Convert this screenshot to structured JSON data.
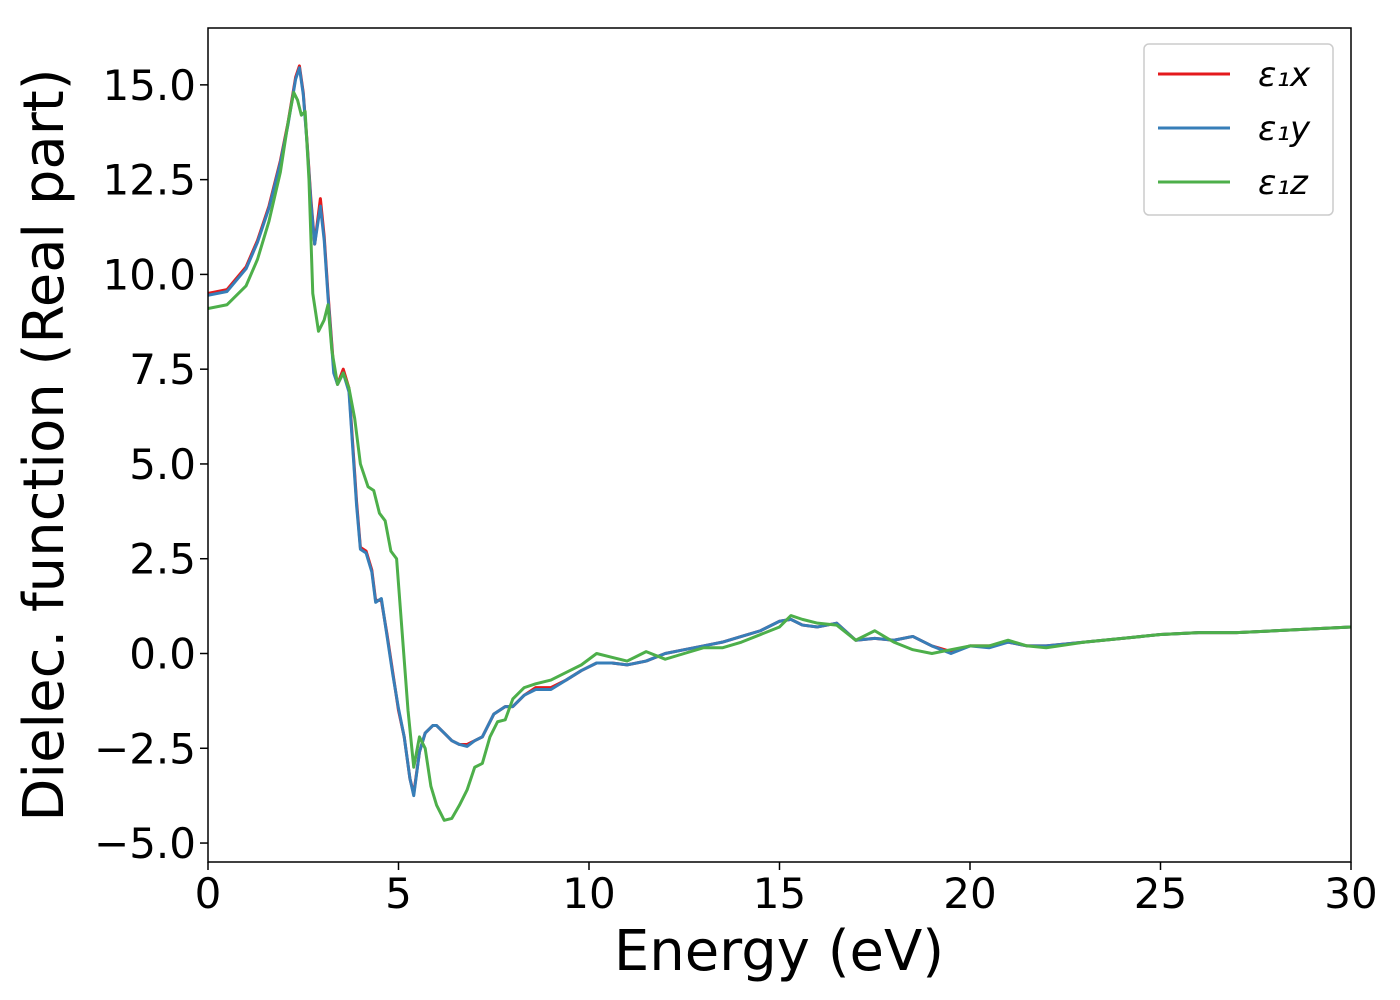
{
  "chart_data": {
    "type": "line",
    "title": "",
    "xlabel": "Energy (eV)",
    "ylabel": "Dielec. function (Real part)",
    "xlim": [
      0,
      30
    ],
    "ylim": [
      -5.5,
      16.5
    ],
    "xticks": [
      0,
      5,
      10,
      15,
      20,
      25,
      30
    ],
    "xtick_labels": [
      "0",
      "5",
      "10",
      "15",
      "20",
      "25",
      "30"
    ],
    "yticks": [
      -5.0,
      -2.5,
      0.0,
      2.5,
      5.0,
      7.5,
      10.0,
      12.5,
      15.0
    ],
    "ytick_labels": [
      "−5.0",
      "−2.5",
      "0.0",
      "2.5",
      "5.0",
      "7.5",
      "10.0",
      "12.5",
      "15.0"
    ],
    "grid": false,
    "legend_position": "top-right",
    "series": [
      {
        "name": "ε₁x",
        "color": "#e41a1c",
        "x": [
          0,
          0.5,
          1.0,
          1.3,
          1.6,
          1.9,
          2.1,
          2.3,
          2.4,
          2.5,
          2.6,
          2.7,
          2.8,
          2.95,
          3.05,
          3.15,
          3.3,
          3.4,
          3.55,
          3.7,
          3.8,
          3.9,
          4.0,
          4.15,
          4.3,
          4.4,
          4.55,
          4.7,
          4.85,
          5.0,
          5.15,
          5.3,
          5.4,
          5.55,
          5.7,
          5.9,
          6.0,
          6.2,
          6.4,
          6.6,
          6.8,
          7.0,
          7.2,
          7.5,
          7.8,
          8.0,
          8.3,
          8.6,
          9.0,
          9.4,
          9.8,
          10.2,
          10.6,
          11.0,
          11.5,
          12.0,
          12.5,
          13.0,
          13.5,
          14.0,
          14.5,
          15.0,
          15.3,
          15.6,
          16.0,
          16.5,
          17.0,
          17.5,
          18.0,
          18.5,
          19.0,
          19.5,
          20.0,
          20.5,
          21.0,
          21.5,
          22.0,
          23.0,
          24.0,
          25.0,
          26.0,
          27.0,
          28.0,
          29.0,
          30.0
        ],
        "y": [
          9.5,
          9.6,
          10.2,
          10.9,
          11.8,
          13.0,
          14.0,
          15.2,
          15.5,
          14.8,
          13.5,
          12.0,
          10.8,
          12.0,
          11.0,
          9.5,
          7.5,
          7.1,
          7.5,
          7.0,
          5.5,
          4.0,
          2.8,
          2.7,
          2.2,
          1.4,
          1.4,
          0.5,
          -0.5,
          -1.5,
          -2.2,
          -3.3,
          -3.7,
          -2.6,
          -2.1,
          -1.9,
          -1.9,
          -2.1,
          -2.3,
          -2.4,
          -2.4,
          -2.3,
          -2.2,
          -1.6,
          -1.4,
          -1.4,
          -1.1,
          -0.9,
          -0.9,
          -0.7,
          -0.45,
          -0.25,
          -0.25,
          -0.3,
          -0.2,
          0.0,
          0.1,
          0.2,
          0.3,
          0.45,
          0.6,
          0.85,
          0.9,
          0.75,
          0.7,
          0.8,
          0.35,
          0.4,
          0.35,
          0.45,
          0.2,
          0.05,
          0.2,
          0.2,
          0.3,
          0.2,
          0.2,
          0.3,
          0.4,
          0.5,
          0.55,
          0.55,
          0.6,
          0.65,
          0.7
        ]
      },
      {
        "name": "ε₁y",
        "color": "#377eb8",
        "x": [
          0,
          0.5,
          1.0,
          1.3,
          1.6,
          1.9,
          2.1,
          2.3,
          2.4,
          2.5,
          2.6,
          2.7,
          2.8,
          2.95,
          3.05,
          3.15,
          3.3,
          3.4,
          3.55,
          3.7,
          3.8,
          3.9,
          4.0,
          4.15,
          4.3,
          4.4,
          4.55,
          4.7,
          4.85,
          5.0,
          5.15,
          5.3,
          5.4,
          5.55,
          5.7,
          5.9,
          6.0,
          6.2,
          6.4,
          6.6,
          6.8,
          7.0,
          7.2,
          7.5,
          7.8,
          8.0,
          8.3,
          8.6,
          9.0,
          9.4,
          9.8,
          10.2,
          10.6,
          11.0,
          11.5,
          12.0,
          12.5,
          13.0,
          13.5,
          14.0,
          14.5,
          15.0,
          15.3,
          15.6,
          16.0,
          16.5,
          17.0,
          17.5,
          18.0,
          18.5,
          19.0,
          19.5,
          20.0,
          20.5,
          21.0,
          21.5,
          22.0,
          23.0,
          24.0,
          25.0,
          26.0,
          27.0,
          28.0,
          29.0,
          30.0
        ],
        "y": [
          9.45,
          9.55,
          10.15,
          10.85,
          11.75,
          12.95,
          13.95,
          15.15,
          15.45,
          14.75,
          13.45,
          11.9,
          10.8,
          11.8,
          10.9,
          9.4,
          7.4,
          7.1,
          7.4,
          6.9,
          5.4,
          3.9,
          2.75,
          2.65,
          2.15,
          1.35,
          1.45,
          0.45,
          -0.55,
          -1.45,
          -2.2,
          -3.3,
          -3.75,
          -2.6,
          -2.1,
          -1.9,
          -1.9,
          -2.1,
          -2.3,
          -2.4,
          -2.45,
          -2.3,
          -2.2,
          -1.6,
          -1.4,
          -1.4,
          -1.1,
          -0.95,
          -0.95,
          -0.7,
          -0.45,
          -0.25,
          -0.25,
          -0.3,
          -0.2,
          0.0,
          0.1,
          0.2,
          0.3,
          0.45,
          0.6,
          0.85,
          0.9,
          0.75,
          0.7,
          0.8,
          0.35,
          0.4,
          0.35,
          0.45,
          0.2,
          0.0,
          0.2,
          0.15,
          0.3,
          0.2,
          0.2,
          0.3,
          0.4,
          0.5,
          0.55,
          0.55,
          0.6,
          0.65,
          0.7
        ]
      },
      {
        "name": "ε₁z",
        "color": "#4daf4a",
        "x": [
          0,
          0.5,
          1.0,
          1.3,
          1.6,
          1.9,
          2.1,
          2.25,
          2.35,
          2.45,
          2.55,
          2.65,
          2.75,
          2.9,
          3.05,
          3.15,
          3.25,
          3.4,
          3.55,
          3.7,
          3.85,
          4.0,
          4.2,
          4.35,
          4.5,
          4.65,
          4.8,
          4.95,
          5.1,
          5.25,
          5.4,
          5.55,
          5.7,
          5.85,
          6.0,
          6.2,
          6.4,
          6.6,
          6.8,
          7.0,
          7.2,
          7.4,
          7.6,
          7.8,
          8.0,
          8.3,
          8.6,
          9.0,
          9.4,
          9.8,
          10.2,
          10.6,
          11.0,
          11.5,
          12.0,
          12.5,
          13.0,
          13.5,
          14.0,
          14.5,
          15.0,
          15.3,
          15.6,
          16.0,
          16.5,
          17.0,
          17.5,
          18.0,
          18.5,
          19.0,
          19.5,
          20.0,
          20.5,
          21.0,
          21.5,
          22.0,
          23.0,
          24.0,
          25.0,
          26.0,
          27.0,
          28.0,
          29.0,
          30.0
        ],
        "y": [
          9.1,
          9.2,
          9.7,
          10.4,
          11.4,
          12.7,
          14.0,
          14.8,
          14.6,
          14.2,
          14.3,
          12.5,
          9.5,
          8.5,
          8.8,
          9.2,
          8.0,
          7.1,
          7.4,
          7.0,
          6.2,
          5.0,
          4.4,
          4.3,
          3.7,
          3.5,
          2.7,
          2.5,
          0.5,
          -1.5,
          -3.0,
          -2.2,
          -2.5,
          -3.5,
          -4.0,
          -4.4,
          -4.35,
          -4.0,
          -3.6,
          -3.0,
          -2.9,
          -2.2,
          -1.8,
          -1.75,
          -1.2,
          -0.9,
          -0.8,
          -0.7,
          -0.5,
          -0.3,
          0.0,
          -0.1,
          -0.2,
          0.05,
          -0.15,
          0.0,
          0.15,
          0.15,
          0.3,
          0.5,
          0.7,
          1.0,
          0.9,
          0.8,
          0.75,
          0.35,
          0.6,
          0.3,
          0.1,
          0.0,
          0.1,
          0.2,
          0.2,
          0.35,
          0.2,
          0.15,
          0.3,
          0.4,
          0.5,
          0.55,
          0.55,
          0.6,
          0.65,
          0.7
        ]
      }
    ]
  }
}
